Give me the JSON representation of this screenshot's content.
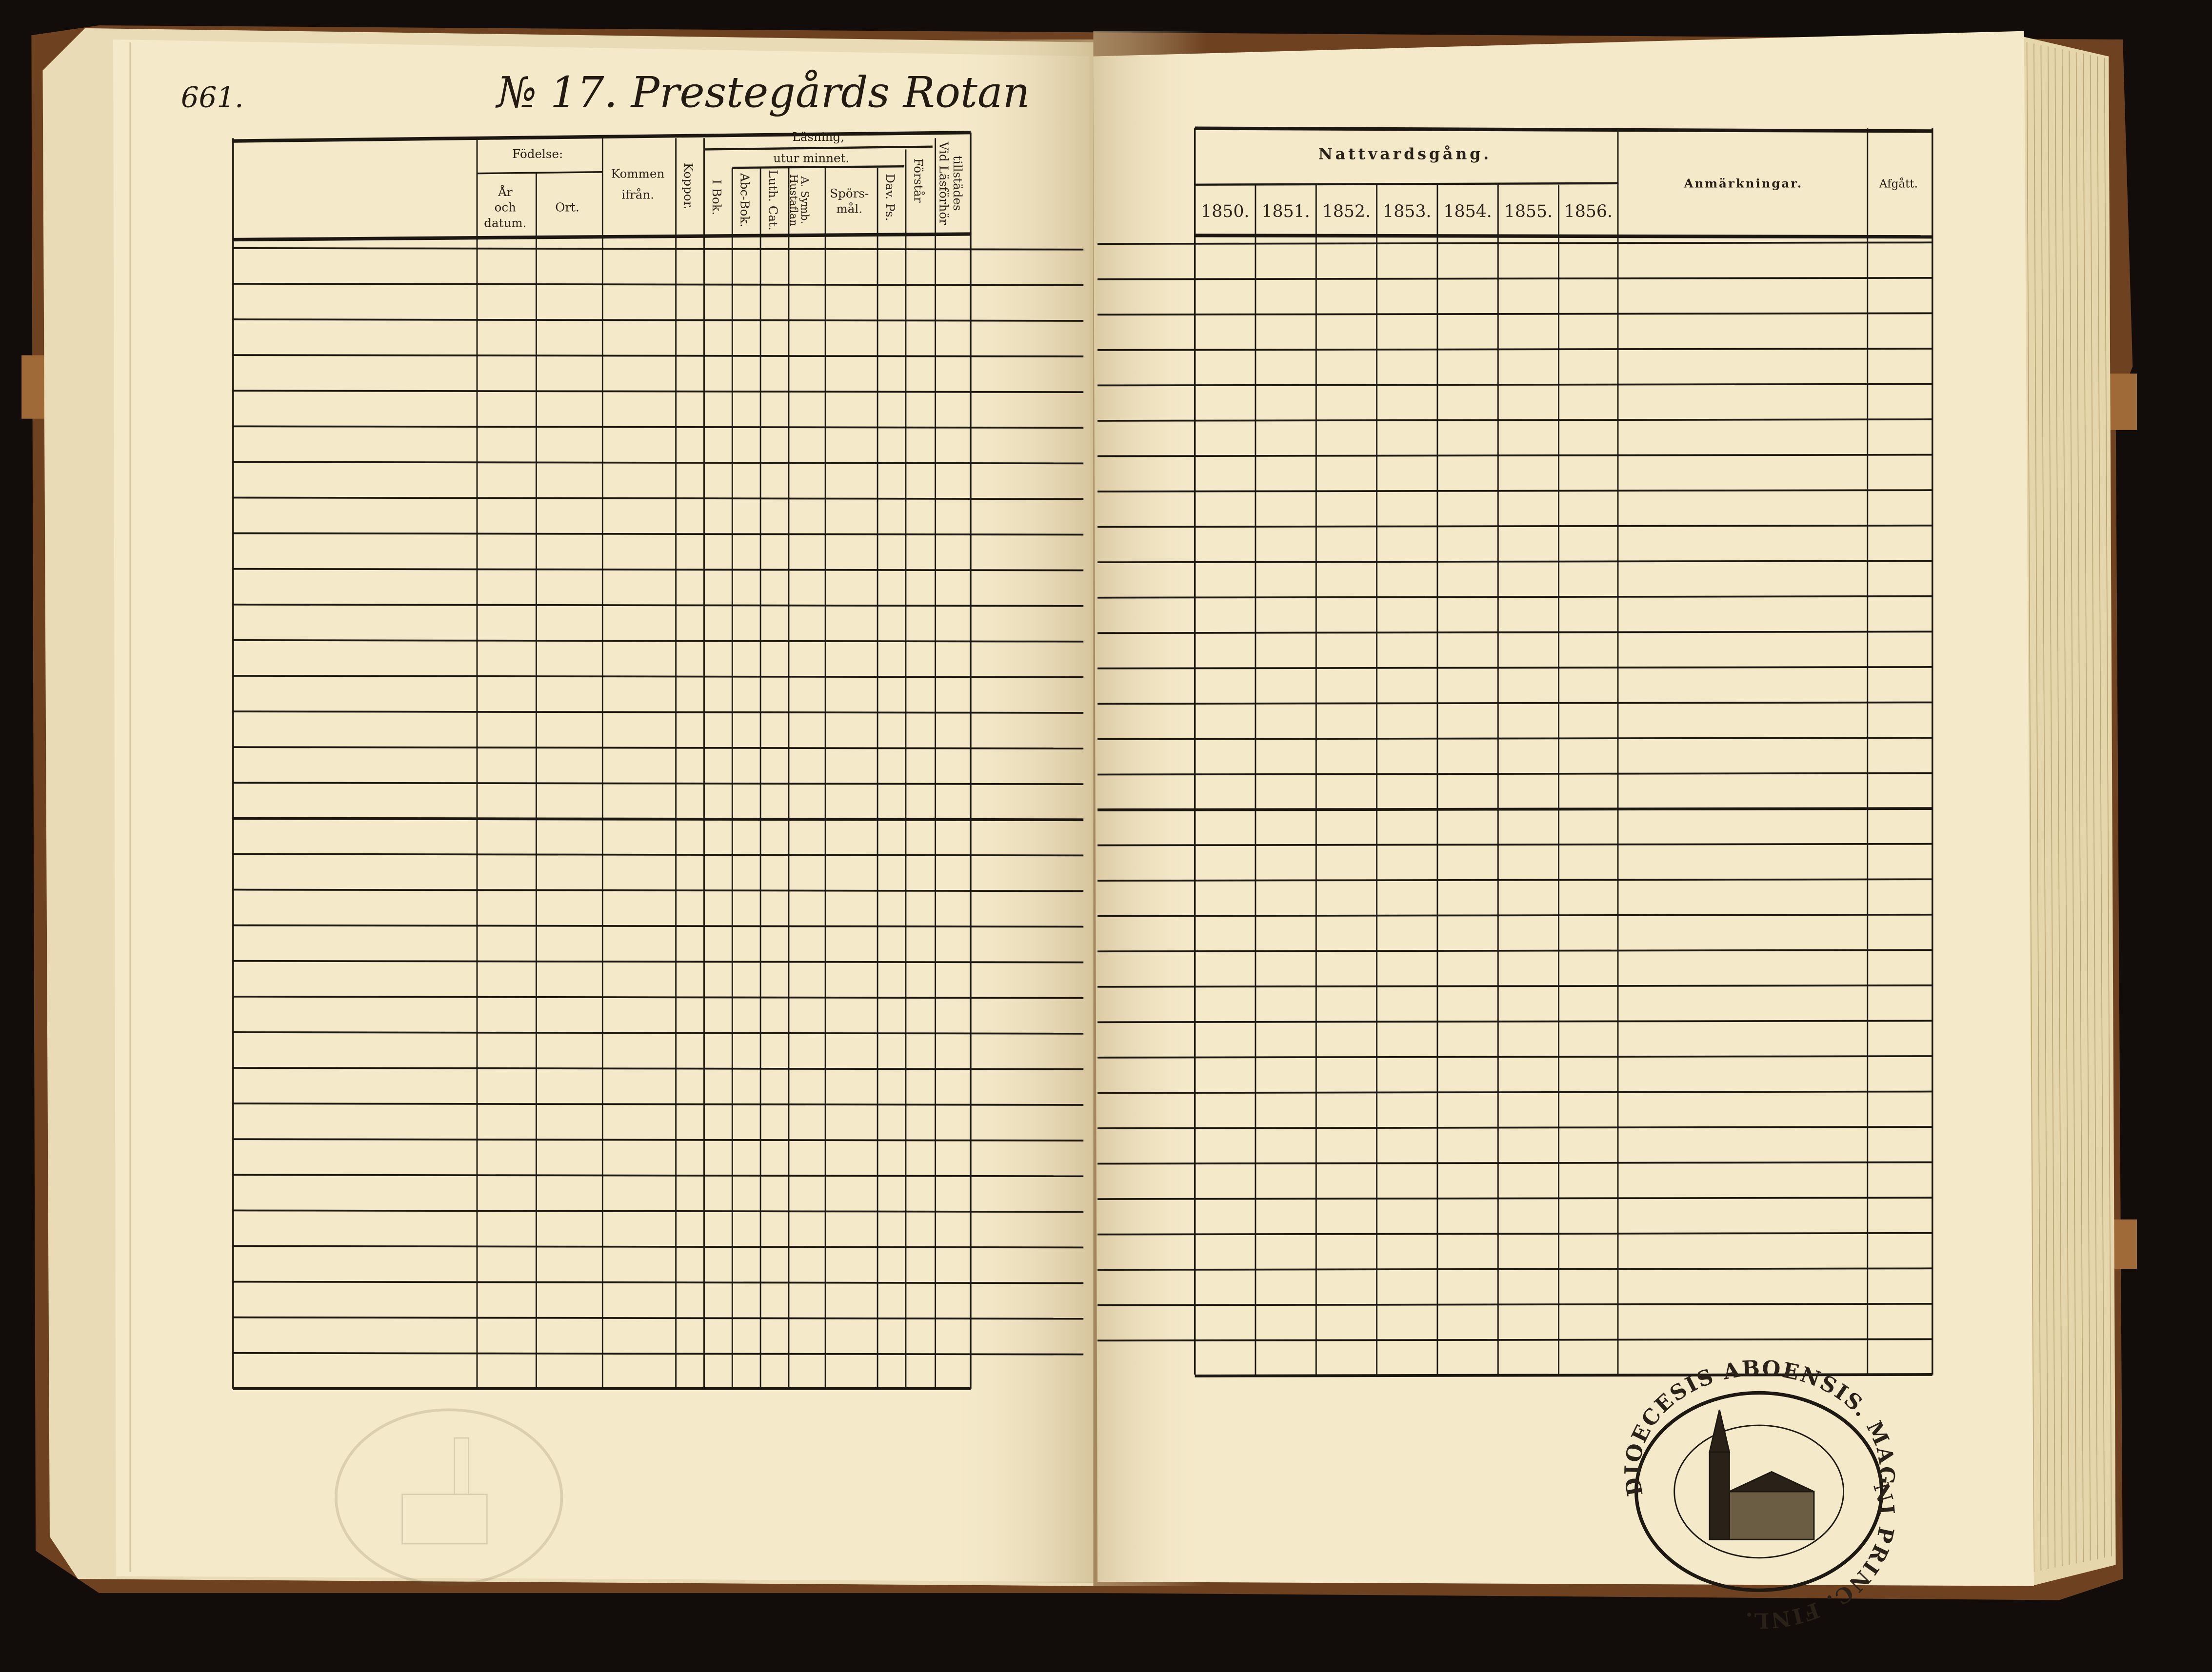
{
  "left_page": {
    "page_number": "661.",
    "title": "№ 17. Prestegårds Rotan",
    "header": {
      "fodelse": "Födelse:",
      "ar": "År",
      "och": "och",
      "datum": "datum.",
      "ort": "Ort.",
      "kommen": "Kommen",
      "ifran": "ifrån.",
      "koppor": "Koppor.",
      "lasning": "Läsning,",
      "utur_minnet": "utur minnet.",
      "i_bok": "I Bok.",
      "abc_bok": "Abc-Bok.",
      "luth_cat": "Luth. Cat.",
      "hustaflan": "Hustaflan",
      "a_symb": "A. Symb.",
      "spors": "Spörs-",
      "mal": "mål.",
      "dav_ps": "Dav. Ps.",
      "forstar": "Förstår",
      "vid_lasforhor": "Vid Läsförhör",
      "tillstades": "tillstädes"
    }
  },
  "right_page": {
    "header": {
      "nattvardsgang": "Nattvardsgång.",
      "years": [
        "1850.",
        "1851.",
        "1852.",
        "1853.",
        "1854.",
        "1855.",
        "1856."
      ],
      "anmarkningar": "Anmärkningar.",
      "afgatt": "Afgått."
    },
    "stamp": {
      "outer_text": "DIOECESIS ABOENSIS. MAGNI PRINC. FINL."
    }
  },
  "colors": {
    "paper": "#f4e9c9",
    "ink": "#1e1812",
    "cover": "#7a4a24",
    "background": "#120d0a"
  }
}
